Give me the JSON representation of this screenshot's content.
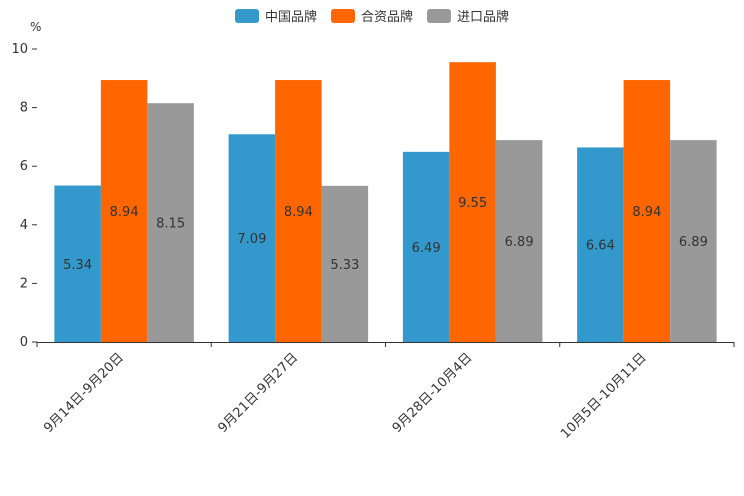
{
  "chart_data": {
    "type": "bar",
    "unit": "%",
    "categories": [
      "9月14日-9月20日",
      "9月21日-9月27日",
      "9月28日-10月4日",
      "10月5日-10月11日"
    ],
    "series": [
      {
        "name": "中国品牌",
        "color": "#3399cc",
        "values": [
          5.34,
          7.09,
          6.49,
          6.64
        ]
      },
      {
        "name": "合资品牌",
        "color": "#ff6600",
        "values": [
          8.94,
          8.94,
          9.55,
          8.94
        ]
      },
      {
        "name": "进口品牌",
        "color": "#999999",
        "values": [
          8.15,
          5.33,
          6.89,
          6.89
        ]
      }
    ],
    "ylim": [
      0,
      10
    ],
    "yticks": [
      0,
      2,
      4,
      6,
      8,
      10
    ],
    "legend_position": "top-center",
    "grid": false
  }
}
